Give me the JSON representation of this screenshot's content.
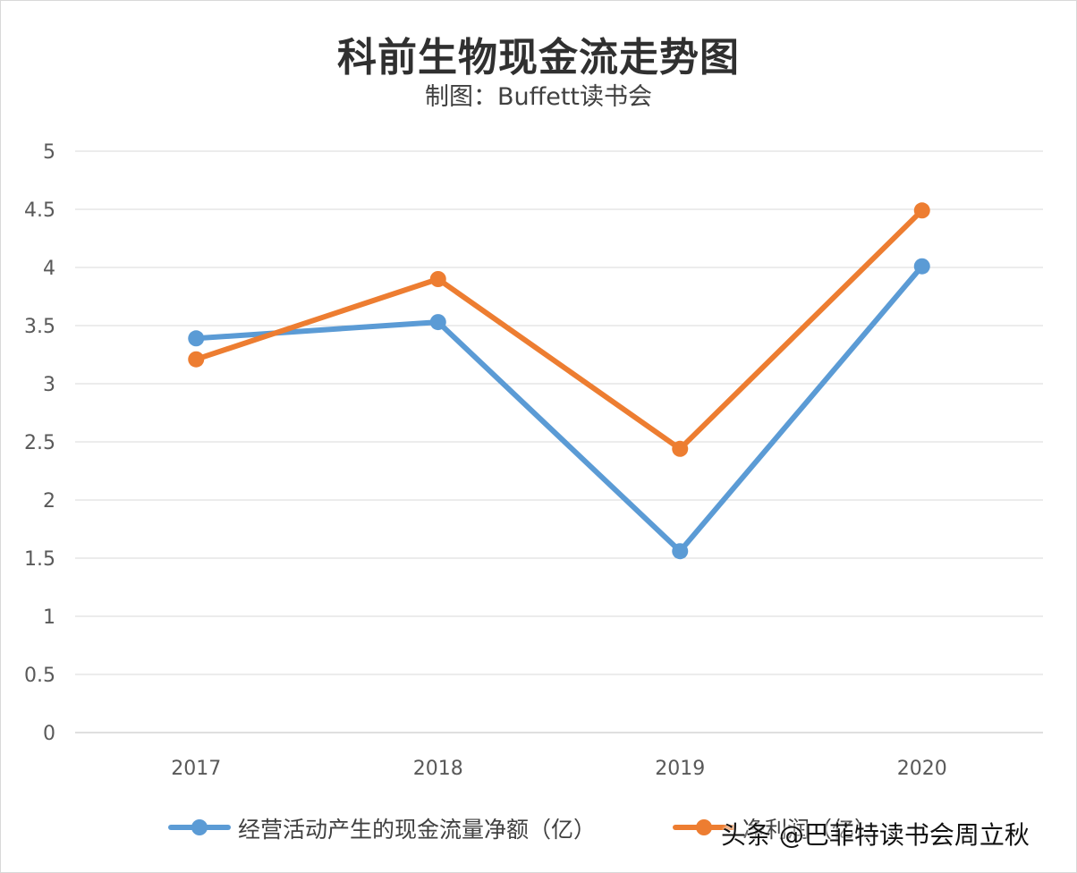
{
  "chart_data": {
    "type": "line",
    "title": "科前生物现金流走势图",
    "subtitle": "制图：Buffett读书会",
    "categories": [
      "2017",
      "2018",
      "2019",
      "2020"
    ],
    "yticks": [
      "0",
      "0.5",
      "1",
      "1.5",
      "2",
      "2.5",
      "3",
      "3.5",
      "4",
      "4.5",
      "5"
    ],
    "ylim": [
      0,
      5
    ],
    "grid": true,
    "legend_position": "bottom",
    "series": [
      {
        "name": "经营活动产生的现金流量净额（亿）",
        "color": "#5b9bd5",
        "values": [
          3.39,
          3.53,
          1.56,
          4.01
        ]
      },
      {
        "name": "净利润（亿）",
        "color": "#ed7d31",
        "values": [
          3.21,
          3.9,
          2.44,
          4.49
        ]
      }
    ]
  },
  "watermark": "头条 @巴菲特读书会周立秋"
}
